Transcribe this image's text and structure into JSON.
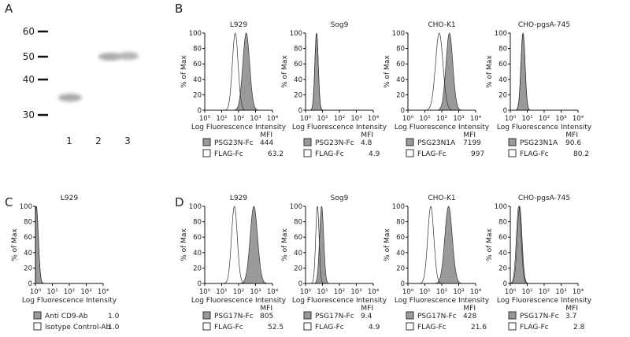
{
  "panels": {
    "A": {
      "label": "A",
      "ticks": [
        "60",
        "50",
        "40",
        "30"
      ],
      "lanes": [
        "1",
        "2",
        "3"
      ]
    },
    "B": {
      "label": "B",
      "plots": [
        {
          "title": "L929",
          "samples": [
            {
              "name": "PSG23N-Fc",
              "mfi": "444"
            },
            {
              "name": "FLAG-Fc",
              "mfi": "63.2"
            }
          ]
        },
        {
          "title": "Sog9",
          "samples": [
            {
              "name": "PSG23N-Fc",
              "mfi": "4.8"
            },
            {
              "name": "FLAG-Fc",
              "mfi": "4.9"
            }
          ]
        },
        {
          "title": "CHO-K1",
          "samples": [
            {
              "name": "PSG23N1A",
              "mfi": "7199"
            },
            {
              "name": "FLAG-Fc",
              "mfi": "997"
            }
          ]
        },
        {
          "title": "CHO-pgsA-745",
          "samples": [
            {
              "name": "PSG23N1A",
              "mfi": "90.6"
            },
            {
              "name": "FLAG-Fc",
              "mfi": "80.2"
            }
          ]
        }
      ]
    },
    "C": {
      "label": "C",
      "plots": [
        {
          "title": "L929",
          "samples": [
            {
              "name": "Anti CD9-Ab",
              "mfi": "1.0"
            },
            {
              "name": "Isotype Control-Ab",
              "mfi": "1.0"
            }
          ]
        }
      ]
    },
    "D": {
      "label": "D",
      "plots": [
        {
          "title": "L929",
          "samples": [
            {
              "name": "PSG17N-Fc",
              "mfi": "805"
            },
            {
              "name": "FLAG-Fc",
              "mfi": "52.5"
            }
          ]
        },
        {
          "title": "Sog9",
          "samples": [
            {
              "name": "PSG17N-Fc",
              "mfi": "9.4"
            },
            {
              "name": "FLAG-Fc",
              "mfi": "4.9"
            }
          ]
        },
        {
          "title": "CHO-K1",
          "samples": [
            {
              "name": "PSG17N-Fc",
              "mfi": "428"
            },
            {
              "name": "FLAG-Fc",
              "mfi": "21.6"
            }
          ]
        },
        {
          "title": "CHO-pgsA-745",
          "samples": [
            {
              "name": "PSG17N-Fc",
              "mfi": "3.7"
            },
            {
              "name": "FLAG-Fc",
              "mfi": "2.8"
            }
          ]
        }
      ]
    }
  },
  "common": {
    "y_axis_label": "% of Max",
    "x_axis_label": "Log Fluorescence Intensity",
    "mfi_header": "MFI",
    "y_ticks": [
      "0",
      "20",
      "40",
      "60",
      "80",
      "100"
    ],
    "x_ticks": [
      "10⁰",
      "10¹",
      "10²",
      "10³",
      "10⁴"
    ]
  }
}
